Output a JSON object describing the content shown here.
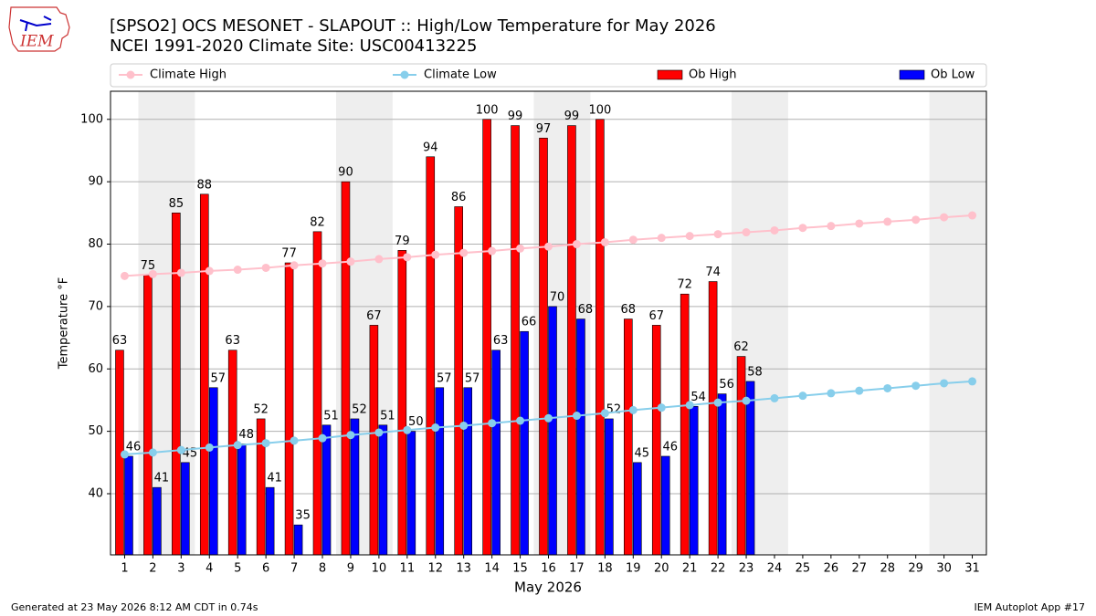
{
  "chart_data": {
    "type": "bar",
    "title": "[SPSO2] OCS MESONET - SLAPOUT :: High/Low Temperature for May 2026",
    "subtitle": "NCEI 1991-2020 Climate Site: USC00413225",
    "ylabel": "Temperature °F",
    "xlabel": "May 2026",
    "logo_text": "IEM",
    "footer_left": "Generated at 23 May 2026 8:12 AM CDT in 0.74s",
    "footer_right": "IEM Autoplot App #17",
    "categories": [
      "1",
      "2",
      "3",
      "4",
      "5",
      "6",
      "7",
      "8",
      "9",
      "10",
      "11",
      "12",
      "13",
      "14",
      "15",
      "16",
      "17",
      "18",
      "19",
      "20",
      "21",
      "22",
      "23",
      "24",
      "25",
      "26",
      "27",
      "28",
      "29",
      "30",
      "31"
    ],
    "ylim": [
      30.2,
      104.5
    ],
    "yticks": [
      40,
      50,
      60,
      70,
      80,
      90,
      100
    ],
    "grid": true,
    "series": [
      {
        "name": "Climate High",
        "kind": "line",
        "color": "#ffc0cb",
        "values": [
          74.9,
          75.2,
          75.4,
          75.7,
          75.9,
          76.2,
          76.6,
          76.9,
          77.2,
          77.6,
          77.9,
          78.3,
          78.6,
          78.9,
          79.3,
          79.6,
          80.0,
          80.3,
          80.7,
          81.0,
          81.3,
          81.6,
          81.9,
          82.2,
          82.6,
          82.9,
          83.3,
          83.6,
          83.9,
          84.3,
          84.6
        ]
      },
      {
        "name": "Climate Low",
        "kind": "line",
        "color": "#87ceeb",
        "values": [
          46.3,
          46.6,
          47.0,
          47.4,
          47.8,
          48.1,
          48.5,
          48.9,
          49.4,
          49.8,
          50.2,
          50.6,
          50.9,
          51.3,
          51.7,
          52.1,
          52.5,
          52.9,
          53.4,
          53.8,
          54.2,
          54.6,
          54.9,
          55.3,
          55.7,
          56.1,
          56.5,
          56.9,
          57.3,
          57.7,
          58.0
        ]
      },
      {
        "name": "Ob High",
        "kind": "bar",
        "color": "#ff0000",
        "values": [
          63,
          75,
          85,
          88,
          63,
          52,
          77,
          82,
          90,
          67,
          79,
          94,
          86,
          100,
          99,
          97,
          99,
          100,
          68,
          67,
          72,
          74,
          62,
          null,
          null,
          null,
          null,
          null,
          null,
          null,
          null
        ]
      },
      {
        "name": "Ob Low",
        "kind": "bar",
        "color": "#0000ff",
        "values": [
          46,
          41,
          45,
          57,
          48,
          41,
          35,
          51,
          52,
          51,
          50,
          57,
          57,
          63,
          66,
          70,
          68,
          52,
          45,
          46,
          54,
          56,
          58,
          null,
          null,
          null,
          null,
          null,
          null,
          null,
          null
        ]
      }
    ]
  }
}
